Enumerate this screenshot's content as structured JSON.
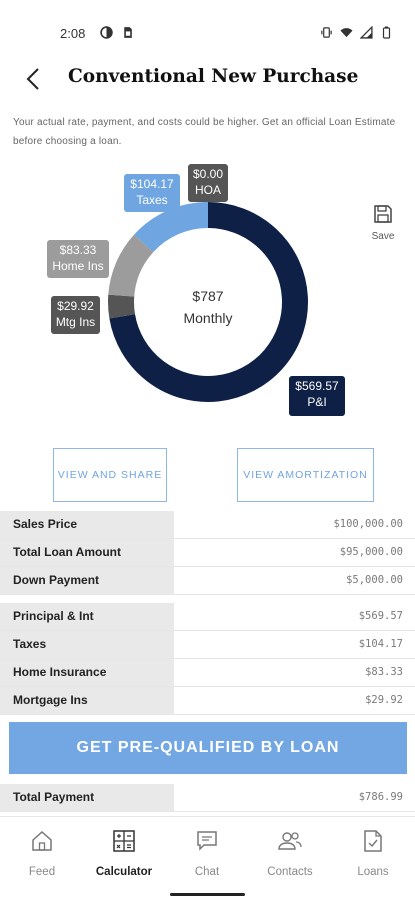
{
  "status_bar": {
    "time": "2:08",
    "icons_left": [
      "circle-half-icon",
      "sim-card-icon"
    ],
    "icons_right": [
      "vibrate-icon",
      "wifi-icon",
      "signal-icon",
      "battery-icon"
    ]
  },
  "header": {
    "title": "Conventional New Purchase",
    "back_icon": "chevron-left-icon"
  },
  "disclaimer": "Your actual rate, payment, and costs could be higher. Get an official Loan Estimate before choosing a loan.",
  "donut": {
    "center_amount": "$787",
    "center_label": "Monthly",
    "segments": [
      {
        "name": "P&I",
        "amount": "$569.57",
        "value": 569.57,
        "color": "#0f2046"
      },
      {
        "name": "Mtg Ins",
        "amount": "$29.92",
        "value": 29.92,
        "color": "#555555"
      },
      {
        "name": "Home Ins",
        "amount": "$83.33",
        "value": 83.33,
        "color": "#9c9c9c"
      },
      {
        "name": "Taxes",
        "amount": "$104.17",
        "value": 104.17,
        "color": "#6fa5e0"
      },
      {
        "name": "HOA",
        "amount": "$0.00",
        "value": 0.0,
        "color": "#555555"
      }
    ],
    "tags": {
      "pi": {
        "amount": "$569.57",
        "label": "P&I"
      },
      "taxes": {
        "amount": "$104.17",
        "label": "Taxes"
      },
      "hoa": {
        "amount": "$0.00",
        "label": "HOA"
      },
      "home": {
        "amount": "$83.33",
        "label": "Home Ins"
      },
      "mtg": {
        "amount": "$29.92",
        "label": "Mtg Ins"
      }
    }
  },
  "save": {
    "label": "Save",
    "icon": "save-icon"
  },
  "actions": {
    "share_label": "VIEW AND SHARE",
    "amortization_label": "VIEW AMORTIZATION"
  },
  "loan_table": [
    {
      "label": "Sales Price",
      "value": "$100,000.00"
    },
    {
      "label": "Total Loan Amount",
      "value": "$95,000.00"
    },
    {
      "label": "Down Payment",
      "value": "$5,000.00"
    }
  ],
  "payment_table": [
    {
      "label": "Principal & Int",
      "value": "$569.57"
    },
    {
      "label": "Taxes",
      "value": "$104.17"
    },
    {
      "label": "Home Insurance",
      "value": "$83.33"
    },
    {
      "label": "Mortgage Ins",
      "value": "$29.92"
    }
  ],
  "cta_label": "GET PRE-QUALIFIED BY LOAN",
  "total_table": [
    {
      "label": "Total Payment",
      "value": "$786.99"
    }
  ],
  "nav": [
    {
      "label": "Feed",
      "icon": "home-icon",
      "active": false
    },
    {
      "label": "Calculator",
      "icon": "calculator-icon",
      "active": true
    },
    {
      "label": "Chat",
      "icon": "chat-icon",
      "active": false
    },
    {
      "label": "Contacts",
      "icon": "contacts-icon",
      "active": false
    },
    {
      "label": "Loans",
      "icon": "document-check-icon",
      "active": false
    }
  ]
}
